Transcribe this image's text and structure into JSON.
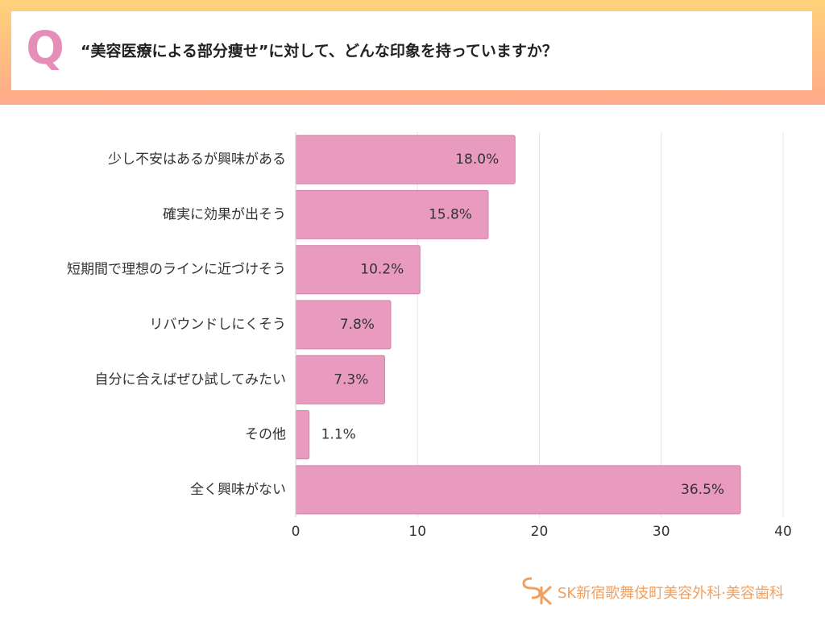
{
  "header": {
    "badge": "Q",
    "question": "“美容医療による部分痩せ”に対して、どんな印象を持っていますか？"
  },
  "chart_data": {
    "type": "hbar",
    "categories": [
      "少し不安はあるが興味がある",
      "確実に効果が出そう",
      "短期間で理想のラインに近づけそう",
      "リバウンドしにくそう",
      "自分に合えばぜひ試してみたい",
      "その他",
      "全く興味がない"
    ],
    "values": [
      18.0,
      15.8,
      10.2,
      7.8,
      7.3,
      1.1,
      36.5
    ],
    "value_labels": [
      "18.0%",
      "15.8%",
      "10.2%",
      "7.8%",
      "7.3%",
      "1.1%",
      "36.5%"
    ],
    "color": "#e89bbf",
    "xlim": [
      0,
      40
    ],
    "xticks": [
      0,
      10,
      20,
      30,
      40
    ],
    "grid": true
  },
  "footer": {
    "brand": "SK新宿歌舞伎町美容外科·美容歯科"
  }
}
